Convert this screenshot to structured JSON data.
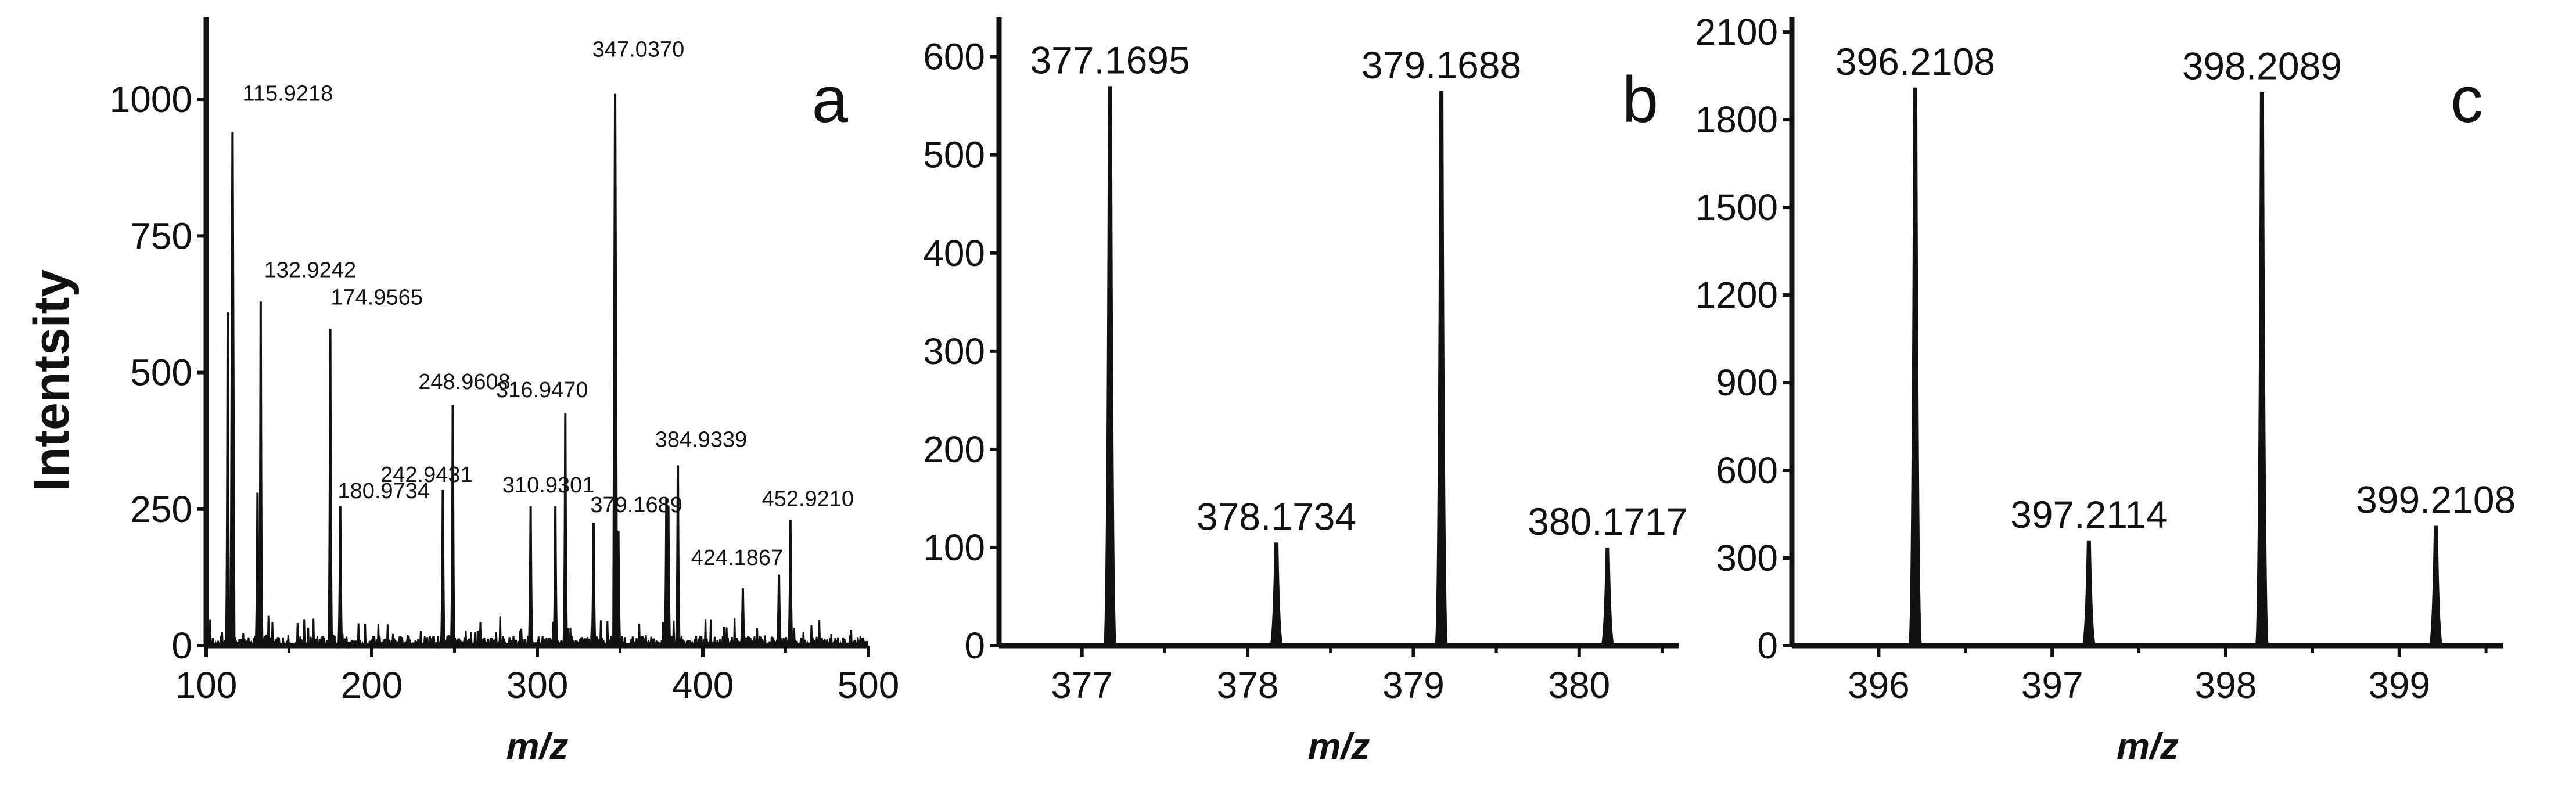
{
  "figure": {
    "y_axis_label": "Intentsity",
    "x_axis_label": "m/z"
  },
  "chart_data": [
    {
      "type": "line",
      "panel_label": "a",
      "xlabel": "m/z",
      "ylabel": "Intentsity",
      "xlim": [
        100,
        500
      ],
      "ylim": [
        0,
        1150
      ],
      "x_ticks": [
        100,
        200,
        300,
        400,
        500
      ],
      "y_ticks": [
        0,
        250,
        500,
        750,
        1000
      ],
      "grid": false,
      "peaks": [
        {
          "x": 113.0,
          "y": 610
        },
        {
          "x": 115.9218,
          "y": 940,
          "label": "115.9218"
        },
        {
          "x": 131.0,
          "y": 280
        },
        {
          "x": 132.9242,
          "y": 630,
          "label": "132.9242"
        },
        {
          "x": 174.9565,
          "y": 580,
          "label": "174.9565"
        },
        {
          "x": 180.9734,
          "y": 255,
          "label": "180.9734"
        },
        {
          "x": 242.9431,
          "y": 285,
          "label": "242.9431"
        },
        {
          "x": 248.9608,
          "y": 440,
          "label": "248.9608"
        },
        {
          "x": 296.0,
          "y": 255
        },
        {
          "x": 310.9301,
          "y": 255,
          "label": "310.9301"
        },
        {
          "x": 316.947,
          "y": 425,
          "label": "316.9470"
        },
        {
          "x": 334.0,
          "y": 225
        },
        {
          "x": 347.037,
          "y": 1010,
          "label": "347.0370"
        },
        {
          "x": 349.0,
          "y": 210
        },
        {
          "x": 378.0,
          "y": 270
        },
        {
          "x": 379.1689,
          "y": 255,
          "label": "379.1689"
        },
        {
          "x": 384.9339,
          "y": 330,
          "label": "384.9339"
        },
        {
          "x": 424.1867,
          "y": 105,
          "label": "424.1867"
        },
        {
          "x": 446.0,
          "y": 130
        },
        {
          "x": 452.921,
          "y": 230,
          "label": "452.9210"
        }
      ]
    },
    {
      "type": "line",
      "panel_label": "b",
      "xlabel": "m/z",
      "xlim": [
        376.5,
        380.6
      ],
      "ylim": [
        0,
        640
      ],
      "x_ticks": [
        377,
        378,
        379,
        380
      ],
      "y_ticks": [
        0,
        100,
        200,
        300,
        400,
        500,
        600
      ],
      "grid": false,
      "peaks": [
        {
          "x": 377.1695,
          "y": 570,
          "label": "377.1695"
        },
        {
          "x": 378.1734,
          "y": 105,
          "label": "378.1734"
        },
        {
          "x": 379.1688,
          "y": 565,
          "label": "379.1688"
        },
        {
          "x": 380.1717,
          "y": 100,
          "label": "380.1717"
        }
      ]
    },
    {
      "type": "line",
      "panel_label": "c",
      "xlabel": "m/z",
      "xlim": [
        395.5,
        399.6
      ],
      "ylim": [
        0,
        2150
      ],
      "x_ticks": [
        396,
        397,
        398,
        399
      ],
      "y_ticks": [
        0,
        300,
        600,
        900,
        1200,
        1500,
        1800,
        2100
      ],
      "grid": false,
      "peaks": [
        {
          "x": 396.2108,
          "y": 1910,
          "label": "396.2108"
        },
        {
          "x": 397.2114,
          "y": 360,
          "label": "397.2114"
        },
        {
          "x": 398.2089,
          "y": 1895,
          "label": "398.2089"
        },
        {
          "x": 399.2108,
          "y": 410,
          "label": "399.2108"
        }
      ]
    }
  ]
}
